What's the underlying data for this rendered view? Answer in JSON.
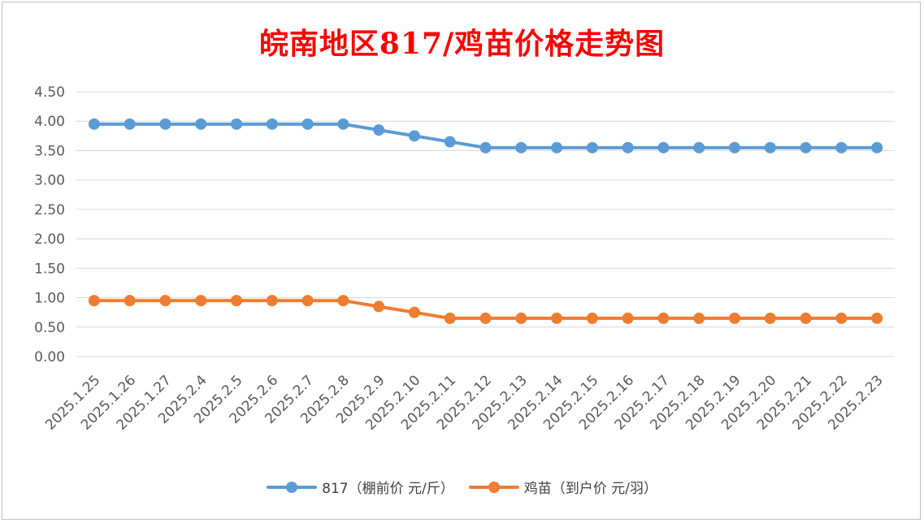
{
  "chart_data": {
    "type": "line",
    "title": "皖南地区817/鸡苗价格走势图",
    "categories": [
      "2025.1.25",
      "2025.1.26",
      "2025.1.27",
      "2025.2.4",
      "2025.2.5",
      "2025.2.6",
      "2025.2.7",
      "2025.2.8",
      "2025.2.9",
      "2025.2.10",
      "2025.2.11",
      "2025.2.12",
      "2025.2.13",
      "2025.2.14",
      "2025.2.15",
      "2025.2.16",
      "2025.2.17",
      "2025.2.18",
      "2025.2.19",
      "2025.2.20",
      "2025.2.21",
      "2025.2.22",
      "2025.2.23"
    ],
    "series": [
      {
        "name": "817（棚前价 元/斤）",
        "color": "#5b9bd5",
        "values": [
          3.95,
          3.95,
          3.95,
          3.95,
          3.95,
          3.95,
          3.95,
          3.95,
          3.85,
          3.75,
          3.65,
          3.55,
          3.55,
          3.55,
          3.55,
          3.55,
          3.55,
          3.55,
          3.55,
          3.55,
          3.55,
          3.55,
          3.55
        ]
      },
      {
        "name": "鸡苗（到户价 元/羽）",
        "color": "#ed7d31",
        "values": [
          0.95,
          0.95,
          0.95,
          0.95,
          0.95,
          0.95,
          0.95,
          0.95,
          0.85,
          0.75,
          0.65,
          0.65,
          0.65,
          0.65,
          0.65,
          0.65,
          0.65,
          0.65,
          0.65,
          0.65,
          0.65,
          0.65,
          0.65
        ]
      }
    ],
    "y_ticks": [
      "0.00",
      "0.50",
      "1.00",
      "1.50",
      "2.00",
      "2.50",
      "3.00",
      "3.50",
      "4.00",
      "4.50"
    ],
    "ylim": [
      0,
      4.5
    ],
    "grid": true,
    "legend_position": "bottom"
  }
}
